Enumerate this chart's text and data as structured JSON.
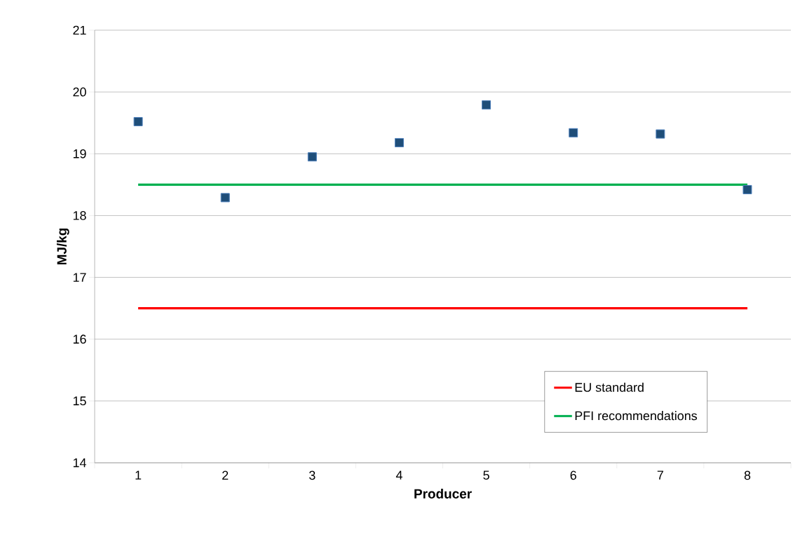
{
  "chart_data": {
    "type": "scatter",
    "xlabel": "Producer",
    "ylabel": "MJ/kg",
    "categories": [
      "1",
      "2",
      "3",
      "4",
      "5",
      "6",
      "7",
      "8"
    ],
    "series": [
      {
        "color": "#1f4e79",
        "marker": "square",
        "values": [
          19.52,
          18.29,
          18.95,
          19.18,
          19.79,
          19.34,
          19.32,
          18.42
        ]
      },
      {
        "type": "line",
        "name": "EU standard",
        "color": "#ff0000",
        "marker": "none",
        "values": [
          16.5,
          16.5,
          16.5,
          16.5,
          16.5,
          16.5,
          16.5,
          16.5
        ]
      },
      {
        "type": "line",
        "name": "PFI recommendations",
        "color": "#00b050",
        "marker": "none",
        "values": [
          18.5,
          18.5,
          18.5,
          18.5,
          18.5,
          18.5,
          18.5,
          18.5
        ]
      }
    ],
    "ylim": [
      14,
      21
    ],
    "yticks": [
      14,
      15,
      16,
      17,
      18,
      19,
      20,
      21
    ],
    "grid": "y",
    "legend": "bottom right"
  }
}
